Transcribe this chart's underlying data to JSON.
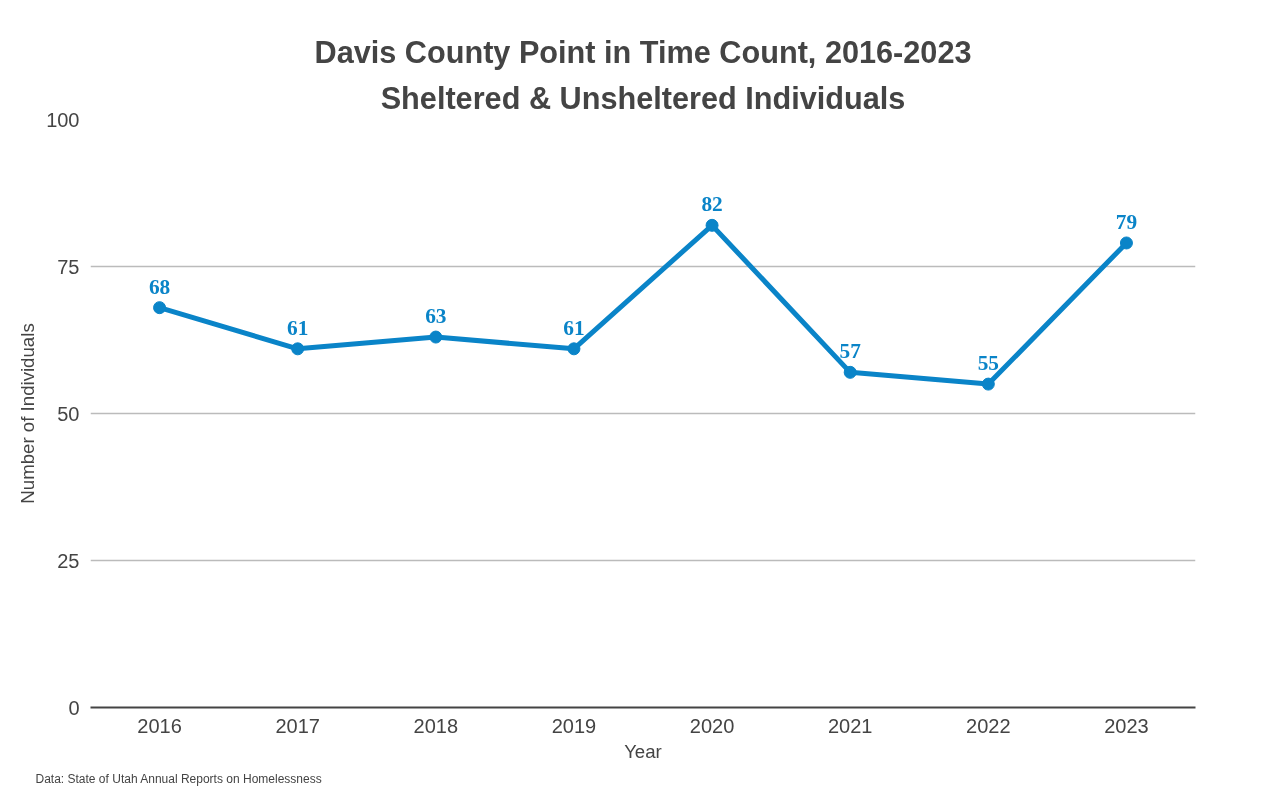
{
  "chart_data": {
    "type": "line",
    "title": "Davis County Point in Time Count, 2016-2023",
    "subtitle": "Sheltered & Unsheltered Individuals",
    "xlabel": "Year",
    "ylabel": "Number of Individuals",
    "categories": [
      "2016",
      "2017",
      "2018",
      "2019",
      "2020",
      "2021",
      "2022",
      "2023"
    ],
    "series": [
      {
        "color": "#0a84c8",
        "values": [
          68,
          61,
          63,
          61,
          82,
          57,
          55,
          79
        ]
      }
    ],
    "ylim": [
      0,
      100
    ],
    "yticks": [
      0,
      25,
      50,
      75,
      100
    ],
    "grid": "y",
    "marker": "circle",
    "line_style": "solid",
    "data_labels": true,
    "annotations": [
      "Data: State of Utah Annual Reports on Homelessness"
    ]
  }
}
